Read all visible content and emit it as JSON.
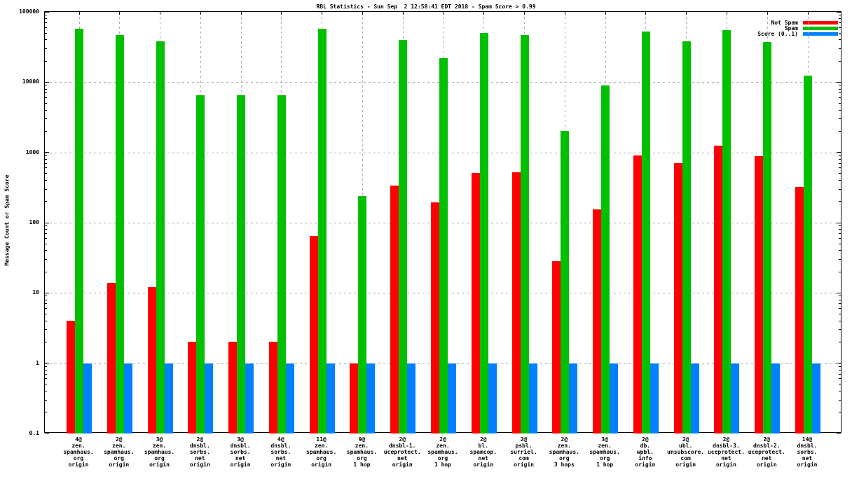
{
  "chart_data": {
    "type": "bar",
    "title": "RBL Statistics - Sun Sep  2 12:58:41 EDT 2018 - Spam Score > 0.99",
    "ylabel": "Message Count or Spam Score",
    "xlabel": "",
    "y_scale": "log",
    "ylim": [
      0.1,
      100000
    ],
    "y_ticks": [
      0.1,
      1,
      10,
      100,
      1000,
      10000,
      100000
    ],
    "grid": true,
    "legend_position": "top-right",
    "background_color": "#ffffff",
    "grid_color": "#a8a8a8",
    "categories": [
      [
        "4@",
        "zen.",
        "spamhaus.",
        "org",
        "origin"
      ],
      [
        "2@",
        "zen.",
        "spamhaus.",
        "org",
        "origin"
      ],
      [
        "3@",
        "zen.",
        "spamhaus.",
        "org",
        "origin"
      ],
      [
        "2@",
        "dnsbl.",
        "sorbs.",
        "net",
        "origin"
      ],
      [
        "3@",
        "dnsbl.",
        "sorbs.",
        "net",
        "origin"
      ],
      [
        "4@",
        "dnsbl.",
        "sorbs.",
        "net",
        "origin"
      ],
      [
        "11@",
        "zen.",
        "spamhaus.",
        "org",
        "origin"
      ],
      [
        "9@",
        "zen.",
        "spamhaus.",
        "org",
        "1 hop"
      ],
      [
        "2@",
        "dnsbl-1.",
        "uceprotect.",
        "net",
        "origin"
      ],
      [
        "2@",
        "zen.",
        "spamhaus.",
        "org",
        "1 hop"
      ],
      [
        "2@",
        "bl.",
        "spamcop.",
        "net",
        "origin"
      ],
      [
        "2@",
        "psbl.",
        "surriel.",
        "com",
        "origin"
      ],
      [
        "2@",
        "zen.",
        "spamhaus.",
        "org",
        "3 hops"
      ],
      [
        "3@",
        "zen.",
        "spamhaus.",
        "org",
        "1 hop"
      ],
      [
        "2@",
        "db.",
        "wpbl.",
        "info",
        "origin"
      ],
      [
        "2@",
        "ubl.",
        "unsubscore.",
        "com",
        "origin"
      ],
      [
        "2@",
        "dnsbl-3.",
        "uceprotect.",
        "net",
        "origin"
      ],
      [
        "2@",
        "dnsbl-2.",
        "uceprotect.",
        "net",
        "origin"
      ],
      [
        "14@",
        "dnsbl.",
        "sorbs.",
        "net",
        "origin"
      ]
    ],
    "series": [
      {
        "name": "Not Spam",
        "color": "#ff0000",
        "values": [
          4,
          14,
          12,
          2,
          2,
          2,
          65,
          1,
          340,
          195,
          510,
          520,
          28,
          155,
          900,
          700,
          1250,
          880,
          320
        ]
      },
      {
        "name": "Spam",
        "color": "#00c000",
        "values": [
          58000,
          47000,
          38000,
          6500,
          6500,
          6500,
          58000,
          240,
          40000,
          22000,
          50000,
          47000,
          2000,
          9000,
          52000,
          38000,
          55000,
          37000,
          12500
        ]
      },
      {
        "name": "Score (0..1)",
        "color": "#0080ff",
        "values": [
          1,
          1,
          1,
          1,
          1,
          1,
          1,
          1,
          1,
          1,
          1,
          1,
          1,
          1,
          1,
          1,
          1,
          1,
          1
        ]
      }
    ]
  }
}
